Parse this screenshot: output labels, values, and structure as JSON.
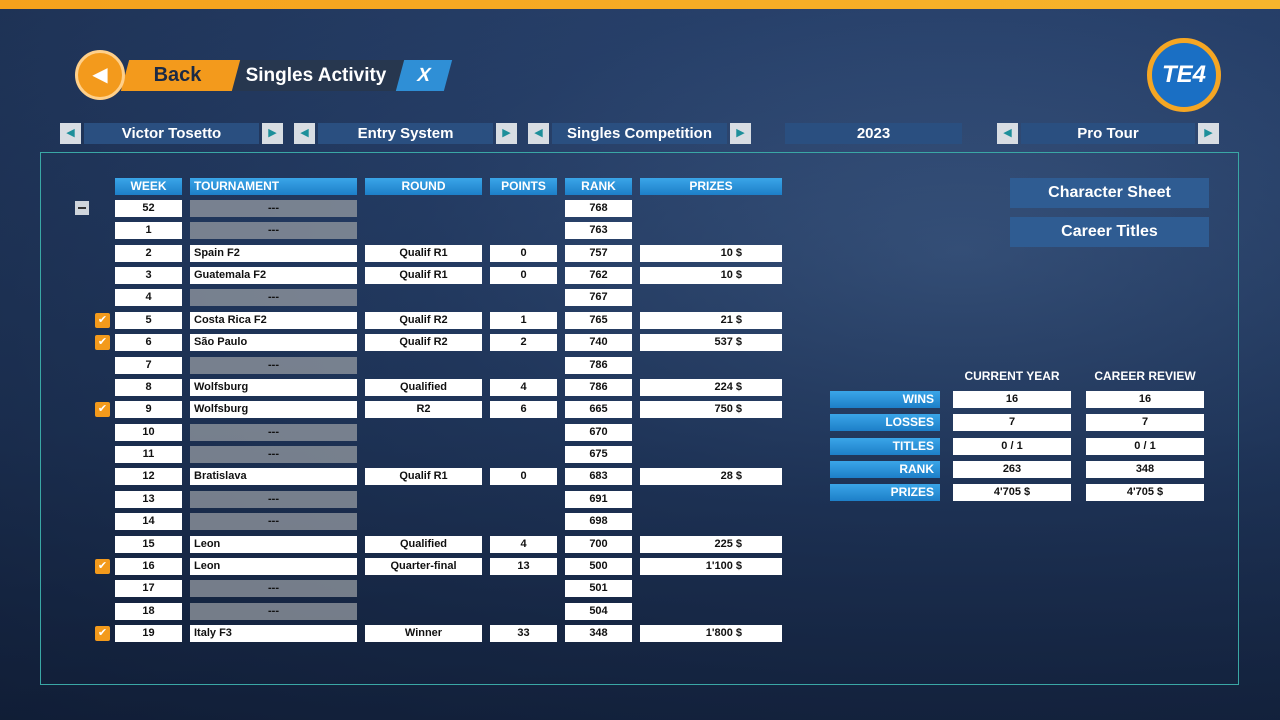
{
  "header": {
    "back": "Back",
    "title": "Singles Activity",
    "close": "X",
    "logo": "TE4"
  },
  "selectors": [
    {
      "label": "Victor Tosetto",
      "arrows": true
    },
    {
      "label": "Entry System",
      "arrows": true
    },
    {
      "label": "Singles Competition",
      "arrows": true
    },
    {
      "label": "2023",
      "arrows": false
    },
    {
      "label": "Pro Tour",
      "arrows": true
    }
  ],
  "table": {
    "columns": [
      "WEEK",
      "TOURNAMENT",
      "ROUND",
      "POINTS",
      "RANK",
      "PRIZES"
    ],
    "rows": [
      {
        "week": 52,
        "tournament": "---",
        "round": null,
        "points": null,
        "rank": 768,
        "prizes": null,
        "checked": false
      },
      {
        "week": 1,
        "tournament": "---",
        "round": null,
        "points": null,
        "rank": 763,
        "prizes": null,
        "checked": false
      },
      {
        "week": 2,
        "tournament": "Spain F2",
        "round": "Qualif R1",
        "points": 0,
        "rank": 757,
        "prizes": "10 $",
        "checked": false
      },
      {
        "week": 3,
        "tournament": "Guatemala F2",
        "round": "Qualif R1",
        "points": 0,
        "rank": 762,
        "prizes": "10 $",
        "checked": false
      },
      {
        "week": 4,
        "tournament": "---",
        "round": null,
        "points": null,
        "rank": 767,
        "prizes": null,
        "checked": false
      },
      {
        "week": 5,
        "tournament": "Costa Rica F2",
        "round": "Qualif R2",
        "points": 1,
        "rank": 765,
        "prizes": "21 $",
        "checked": true
      },
      {
        "week": 6,
        "tournament": "São Paulo",
        "round": "Qualif R2",
        "points": 2,
        "rank": 740,
        "prizes": "537 $",
        "checked": true
      },
      {
        "week": 7,
        "tournament": "---",
        "round": null,
        "points": null,
        "rank": 786,
        "prizes": null,
        "checked": false
      },
      {
        "week": 8,
        "tournament": "Wolfsburg",
        "round": "Qualified",
        "points": 4,
        "rank": 786,
        "prizes": "224 $",
        "checked": false
      },
      {
        "week": 9,
        "tournament": "Wolfsburg",
        "round": "R2",
        "points": 6,
        "rank": 665,
        "prizes": "750 $",
        "checked": true
      },
      {
        "week": 10,
        "tournament": "---",
        "round": null,
        "points": null,
        "rank": 670,
        "prizes": null,
        "checked": false
      },
      {
        "week": 11,
        "tournament": "---",
        "round": null,
        "points": null,
        "rank": 675,
        "prizes": null,
        "checked": false
      },
      {
        "week": 12,
        "tournament": "Bratislava",
        "round": "Qualif R1",
        "points": 0,
        "rank": 683,
        "prizes": "28 $",
        "checked": false
      },
      {
        "week": 13,
        "tournament": "---",
        "round": null,
        "points": null,
        "rank": 691,
        "prizes": null,
        "checked": false
      },
      {
        "week": 14,
        "tournament": "---",
        "round": null,
        "points": null,
        "rank": 698,
        "prizes": null,
        "checked": false
      },
      {
        "week": 15,
        "tournament": "Leon",
        "round": "Qualified",
        "points": 4,
        "rank": 700,
        "prizes": "225 $",
        "checked": false
      },
      {
        "week": 16,
        "tournament": "Leon",
        "round": "Quarter-final",
        "points": 13,
        "rank": 500,
        "prizes": "1'100 $",
        "checked": true
      },
      {
        "week": 17,
        "tournament": "---",
        "round": null,
        "points": null,
        "rank": 501,
        "prizes": null,
        "checked": false
      },
      {
        "week": 18,
        "tournament": "---",
        "round": null,
        "points": null,
        "rank": 504,
        "prizes": null,
        "checked": false
      },
      {
        "week": 19,
        "tournament": "Italy F3",
        "round": "Winner",
        "points": 33,
        "rank": 348,
        "prizes": "1'800 $",
        "checked": true
      }
    ]
  },
  "buttons": [
    "Character Sheet",
    "Career Titles"
  ],
  "stats": {
    "columns": [
      "CURRENT YEAR",
      "CAREER REVIEW"
    ],
    "rows": [
      {
        "label": "WINS",
        "values": [
          16,
          16
        ]
      },
      {
        "label": "LOSSES",
        "values": [
          7,
          7
        ]
      },
      {
        "label": "TITLES",
        "values": [
          "0 / 1",
          "0 / 1"
        ]
      },
      {
        "label": "RANK",
        "values": [
          263,
          348
        ]
      },
      {
        "label": "PRIZES",
        "values": [
          "4'705 $",
          "4'705 $"
        ]
      }
    ]
  }
}
